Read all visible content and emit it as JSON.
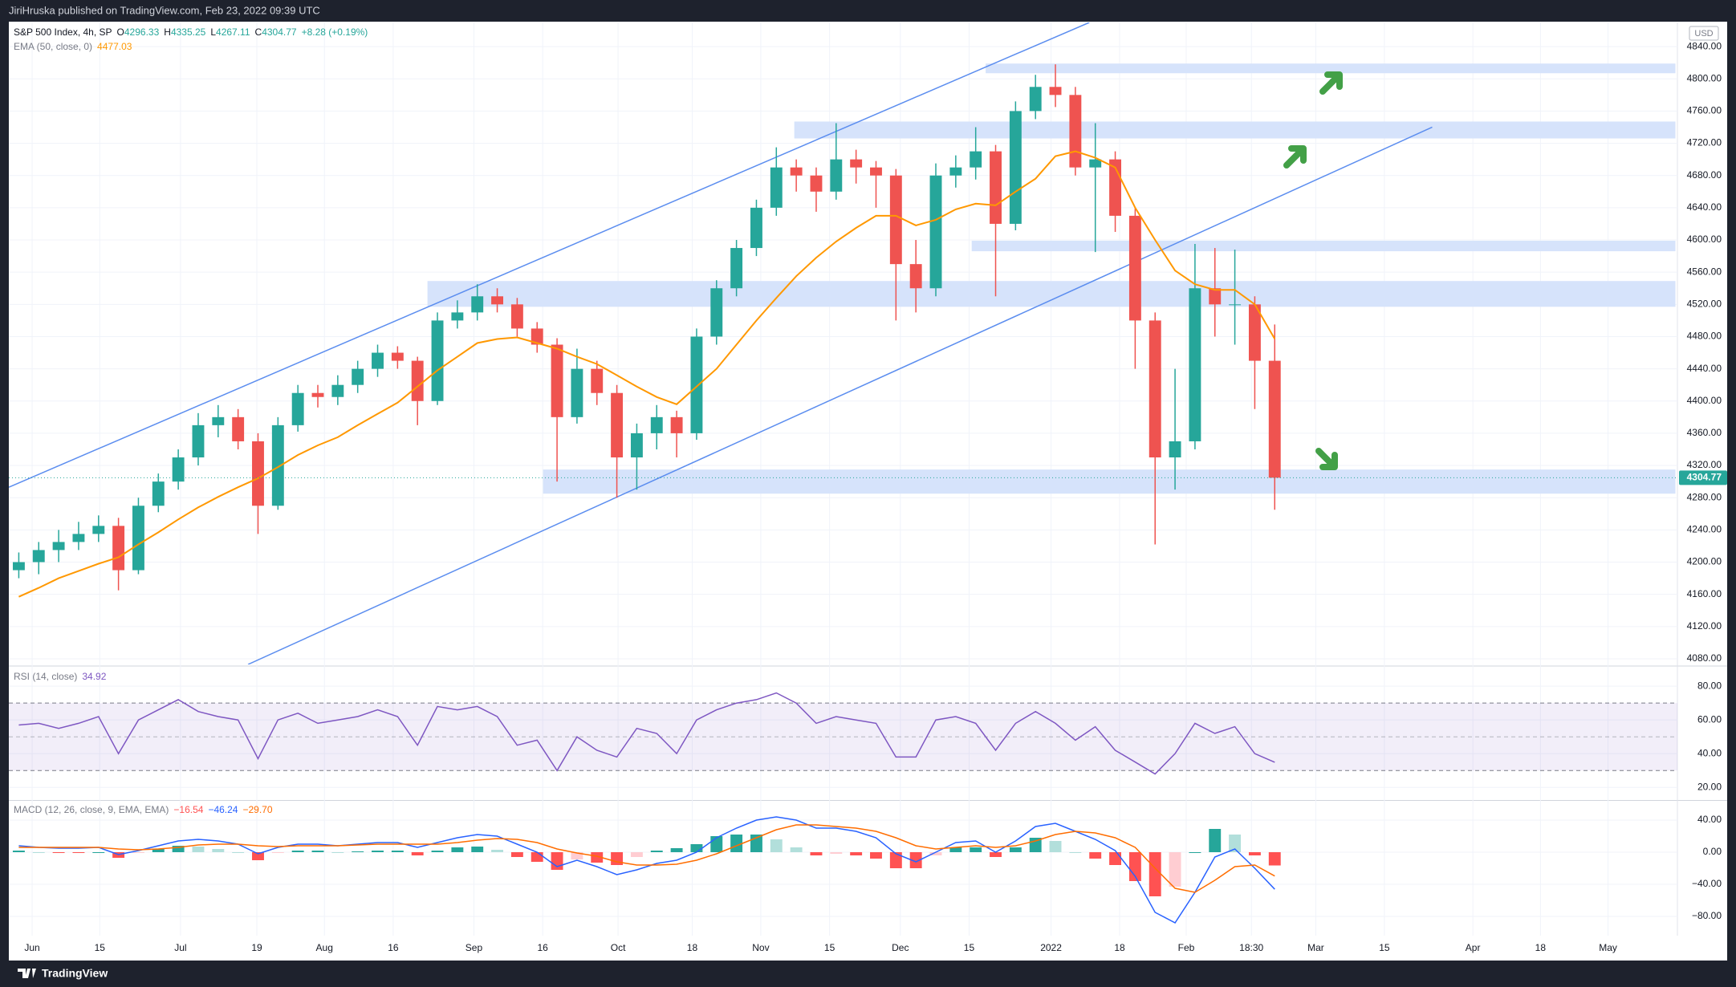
{
  "header": {
    "publisher": "JiriHruska published on TradingView.com, Feb 23, 2022 09:39 UTC"
  },
  "footer": {
    "brand": "TradingView"
  },
  "chart_data": [
    {
      "type": "candlestick",
      "title": "S&P 500 Index, 4h, SP",
      "ohlc_legend": [
        {
          "label": "O",
          "value": "4296.33"
        },
        {
          "label": "H",
          "value": "4335.25"
        },
        {
          "label": "L",
          "value": "4267.11"
        },
        {
          "label": "C",
          "value": "4304.77"
        }
      ],
      "change": "+8.28 (+0.19%)",
      "currency": "USD",
      "up_color": "#26a69a",
      "down_color": "#ef5350",
      "candles": {
        "open": [
          4190,
          4200,
          4215,
          4225,
          4235,
          4245,
          4190,
          4270,
          4300,
          4330,
          4370,
          4380,
          4350,
          4270,
          4370,
          4410,
          4405,
          4420,
          4440,
          4460,
          4450,
          4400,
          4500,
          4510,
          4530,
          4520,
          4490,
          4470,
          4380,
          4440,
          4410,
          4330,
          4360,
          4380,
          4360,
          4480,
          4540,
          4590,
          4640,
          4690,
          4680,
          4660,
          4700,
          4690,
          4680,
          4570,
          4540,
          4680,
          4690,
          4710,
          4620,
          4760,
          4790,
          4780,
          4690,
          4700,
          4630,
          4500,
          4330,
          4350,
          4540,
          4520,
          4520,
          4450
        ],
        "high": [
          4212,
          4225,
          4240,
          4250,
          4258,
          4255,
          4280,
          4310,
          4340,
          4385,
          4395,
          4390,
          4360,
          4380,
          4420,
          4420,
          4432,
          4450,
          4470,
          4468,
          4455,
          4510,
          4525,
          4545,
          4540,
          4528,
          4498,
          4478,
          4465,
          4450,
          4420,
          4372,
          4395,
          4388,
          4490,
          4550,
          4600,
          4650,
          4715,
          4700,
          4690,
          4745,
          4712,
          4698,
          4688,
          4600,
          4695,
          4705,
          4740,
          4718,
          4772,
          4805,
          4818,
          4790,
          4745,
          4710,
          4640,
          4510,
          4440,
          4595,
          4590,
          4588,
          4530,
          4495
        ],
        "low": [
          4180,
          4185,
          4200,
          4215,
          4225,
          4165,
          4185,
          4262,
          4290,
          4320,
          4355,
          4340,
          4235,
          4265,
          4362,
          4392,
          4395,
          4410,
          4430,
          4440,
          4370,
          4395,
          4490,
          4500,
          4510,
          4480,
          4460,
          4300,
          4372,
          4395,
          4280,
          4290,
          4340,
          4330,
          4352,
          4470,
          4530,
          4580,
          4630,
          4660,
          4635,
          4650,
          4670,
          4640,
          4500,
          4510,
          4530,
          4665,
          4675,
          4530,
          4612,
          4750,
          4765,
          4680,
          4585,
          4610,
          4440,
          4222,
          4290,
          4340,
          4480,
          4470,
          4390,
          4265
        ],
        "close": [
          4200,
          4215,
          4225,
          4235,
          4245,
          4190,
          4270,
          4300,
          4330,
          4370,
          4380,
          4350,
          4270,
          4370,
          4410,
          4405,
          4420,
          4440,
          4460,
          4450,
          4400,
          4500,
          4510,
          4530,
          4520,
          4490,
          4470,
          4380,
          4440,
          4410,
          4330,
          4360,
          4380,
          4360,
          4480,
          4540,
          4590,
          4640,
          4690,
          4680,
          4660,
          4700,
          4690,
          4680,
          4570,
          4540,
          4680,
          4690,
          4710,
          4620,
          4760,
          4790,
          4780,
          4690,
          4700,
          4630,
          4500,
          4330,
          4350,
          4540,
          4520,
          4520,
          4450,
          4304.77
        ]
      },
      "overlays": [
        {
          "name": "EMA (50, close, 0)",
          "color": "#ff9800",
          "values": [
            4157,
            4168,
            4180,
            4189,
            4198,
            4206,
            4222,
            4237,
            4253,
            4268,
            4281,
            4293,
            4304,
            4318,
            4333,
            4345,
            4355,
            4370,
            4384,
            4398,
            4418,
            4438,
            4455,
            4472,
            4477,
            4479,
            4472,
            4465,
            4455,
            4446,
            4432,
            4418,
            4405,
            4396,
            4418,
            4440,
            4470,
            4500,
            4528,
            4555,
            4578,
            4598,
            4615,
            4630,
            4630,
            4618,
            4625,
            4638,
            4645,
            4643,
            4660,
            4676,
            4704,
            4710,
            4702,
            4690,
            4640,
            4600,
            4562,
            4545,
            4538,
            4538,
            4520,
            4477.03
          ]
        }
      ],
      "zones": [
        {
          "from": 4807,
          "to": 4819,
          "start": 48.5,
          "end": 83.1
        },
        {
          "from": 4726,
          "to": 4747,
          "start": 38.9,
          "end": 83.1
        },
        {
          "from": 4586,
          "to": 4599,
          "start": 47.8,
          "end": 83.1
        },
        {
          "from": 4517,
          "to": 4549,
          "start": 20.5,
          "end": 83.1
        },
        {
          "from": 4285,
          "to": 4315,
          "start": 26.3,
          "end": 83.1
        }
      ],
      "zone_color": "#d6e3fb",
      "trendlines": [
        {
          "points": [
            {
              "x": -0.5,
              "y": 4293
            },
            {
              "x": 53.7,
              "y": 4870
            }
          ]
        },
        {
          "points": [
            {
              "x": 11.5,
              "y": 4073
            },
            {
              "x": 70.9,
              "y": 4740
            }
          ]
        }
      ],
      "trendline_color": "#5b8def",
      "xlim": [
        -0.5,
        83.2
      ],
      "xticks": [
        {
          "value": 0.67,
          "label": "Jun"
        },
        {
          "value": 4.06,
          "label": "15"
        },
        {
          "value": 8.11,
          "label": "Jul"
        },
        {
          "value": 11.94,
          "label": "19"
        },
        {
          "value": 15.33,
          "label": "Aug"
        },
        {
          "value": 18.78,
          "label": "16"
        },
        {
          "value": 22.83,
          "label": "Sep"
        },
        {
          "value": 26.28,
          "label": "16"
        },
        {
          "value": 30.06,
          "label": "Oct"
        },
        {
          "value": 33.78,
          "label": "18"
        },
        {
          "value": 37.22,
          "label": "Nov"
        },
        {
          "value": 40.67,
          "label": "15"
        },
        {
          "value": 44.22,
          "label": "Dec"
        },
        {
          "value": 47.67,
          "label": "15"
        },
        {
          "value": 51.78,
          "label": "2022"
        },
        {
          "value": 55.22,
          "label": "18"
        },
        {
          "value": 58.56,
          "label": "Feb"
        },
        {
          "value": 61.83,
          "label": "18:30"
        },
        {
          "value": 65.06,
          "label": "Mar"
        },
        {
          "value": 68.5,
          "label": "15"
        },
        {
          "value": 72.94,
          "label": "Apr"
        },
        {
          "value": 76.33,
          "label": "18"
        },
        {
          "value": 79.72,
          "label": "May"
        }
      ],
      "ylim": [
        4073,
        4870
      ],
      "yticks": [
        {
          "value": 4080,
          "label": "4080.00"
        },
        {
          "value": 4120,
          "label": "4120.00"
        },
        {
          "value": 4160,
          "label": "4160.00"
        },
        {
          "value": 4200,
          "label": "4200.00"
        },
        {
          "value": 4240,
          "label": "4240.00"
        },
        {
          "value": 4280,
          "label": "4280.00"
        },
        {
          "value": 4320,
          "label": "4320.00"
        },
        {
          "value": 4360,
          "label": "4360.00"
        },
        {
          "value": 4400,
          "label": "4400.00"
        },
        {
          "value": 4440,
          "label": "4440.00"
        },
        {
          "value": 4480,
          "label": "4480.00"
        },
        {
          "value": 4520,
          "label": "4520.00"
        },
        {
          "value": 4560,
          "label": "4560.00"
        },
        {
          "value": 4600,
          "label": "4600.00"
        },
        {
          "value": 4640,
          "label": "4640.00"
        },
        {
          "value": 4680,
          "label": "4680.00"
        },
        {
          "value": 4720,
          "label": "4720.00"
        },
        {
          "value": 4760,
          "label": "4760.00"
        },
        {
          "value": 4800,
          "label": "4800.00"
        },
        {
          "value": 4840,
          "label": "4840.00"
        }
      ],
      "grid": true
    },
    {
      "type": "line",
      "title": "RSI (14, close)",
      "color": "#7e57c2",
      "values": [
        57,
        58,
        55,
        58,
        62,
        40,
        60,
        66,
        72,
        65,
        62,
        60,
        37,
        60,
        64,
        58,
        60,
        62,
        66,
        62,
        45,
        68,
        66,
        68,
        62,
        45,
        48,
        30,
        50,
        42,
        38,
        55,
        52,
        40,
        60,
        66,
        70,
        72,
        76,
        70,
        58,
        62,
        60,
        58,
        38,
        38,
        60,
        62,
        58,
        42,
        58,
        65,
        58,
        48,
        56,
        42,
        35,
        28,
        40,
        58,
        52,
        56,
        40,
        34.92
      ],
      "band": [
        30,
        70
      ],
      "midline": 50,
      "ylim": [
        13,
        91
      ],
      "yticks": [
        {
          "value": 20,
          "label": "20.00"
        },
        {
          "value": 40,
          "label": "40.00"
        },
        {
          "value": 60,
          "label": "60.00"
        },
        {
          "value": 80,
          "label": "80.00"
        }
      ],
      "grid": true
    },
    {
      "type": "macd",
      "title": "MACD (12, 26, close, 9, EMA, EMA)",
      "histogram": {
        "legend_value": "−16.54",
        "colors": {
          "up": "#26a69a",
          "up_fading": "#b2dfdb",
          "down": "#ff5252",
          "down_fading": "#ffcdd2"
        },
        "values": [
          2,
          0,
          -1,
          -1,
          0,
          -7,
          -1,
          4,
          8,
          7,
          4,
          0,
          -10,
          -1,
          2,
          2,
          0,
          1,
          2,
          2,
          -4,
          2,
          6,
          7,
          3,
          -6,
          -12,
          -22,
          -9,
          -13,
          -16,
          -6,
          2,
          5,
          10,
          20,
          22,
          22,
          16,
          6,
          -4,
          -2,
          -4,
          -8,
          -20,
          -20,
          -4,
          6,
          6,
          -6,
          6,
          18,
          14,
          0,
          -8,
          -16,
          -36,
          -55,
          -43,
          0,
          29,
          22,
          -4,
          -16.54
        ]
      },
      "series": [
        {
          "color": "#2962ff",
          "legend_value": "−46.24",
          "values": [
            8,
            6,
            5,
            5,
            6,
            -3,
            2,
            8,
            14,
            16,
            14,
            10,
            -2,
            6,
            10,
            10,
            8,
            10,
            12,
            12,
            6,
            12,
            18,
            22,
            20,
            10,
            0,
            -18,
            -10,
            -18,
            -28,
            -22,
            -14,
            -10,
            0,
            18,
            30,
            40,
            44,
            40,
            30,
            30,
            26,
            18,
            -2,
            -12,
            0,
            12,
            14,
            0,
            14,
            32,
            36,
            26,
            16,
            2,
            -30,
            -75,
            -88,
            -50,
            -6,
            4,
            -20,
            -46.24
          ]
        },
        {
          "color": "#ff6d00",
          "legend_value": "−29.70",
          "values": [
            6,
            6,
            6,
            6,
            6,
            4,
            3,
            4,
            6,
            9,
            10,
            10,
            8,
            7,
            8,
            8,
            8,
            9,
            10,
            10,
            10,
            10,
            12,
            15,
            17,
            16,
            12,
            4,
            -1,
            -5,
            -12,
            -16,
            -16,
            -15,
            -10,
            -2,
            8,
            18,
            28,
            34,
            34,
            32,
            30,
            26,
            18,
            8,
            4,
            6,
            8,
            6,
            8,
            14,
            22,
            26,
            24,
            18,
            6,
            -20,
            -45,
            -50,
            -35,
            -18,
            -16,
            -29.7
          ]
        }
      ],
      "ylim": [
        -104,
        63
      ],
      "yticks": [
        {
          "value": -80,
          "label": "−80.00"
        },
        {
          "value": -40,
          "label": "−40.00"
        },
        {
          "value": 0,
          "label": "0.00"
        },
        {
          "value": 40,
          "label": "40.00"
        }
      ],
      "grid": true
    }
  ]
}
